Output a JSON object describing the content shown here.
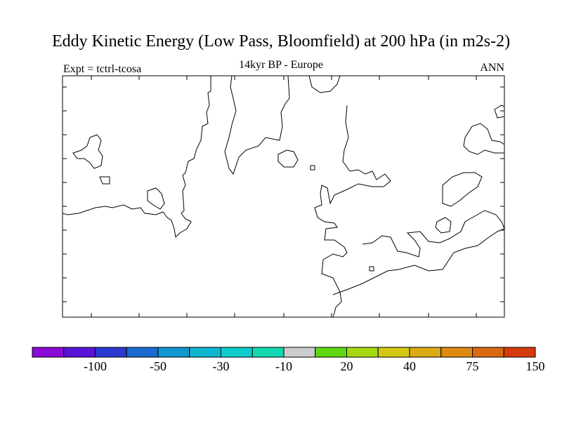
{
  "title": "Eddy Kinetic Energy (Low Pass, Bloomfield) at 200 hPa (in m2s-2)",
  "experiment": "Expt = tctrl-tcosa",
  "period": "14kyr BP - Europe",
  "season": "ANN",
  "colorbar": {
    "colors": [
      "#8a0ad6",
      "#5a12d8",
      "#2a3ad0",
      "#1a6ad0",
      "#1296d0",
      "#10b6d0",
      "#10cccc",
      "#12d8b0",
      "#cccccc",
      "#5ed812",
      "#a6d812",
      "#d2c812",
      "#dcaa12",
      "#dc8a12",
      "#d86a12",
      "#d43a0c"
    ],
    "tick_labels": [
      "-100",
      "-50",
      "-30",
      "-10",
      "20",
      "40",
      "75",
      "150"
    ]
  }
}
